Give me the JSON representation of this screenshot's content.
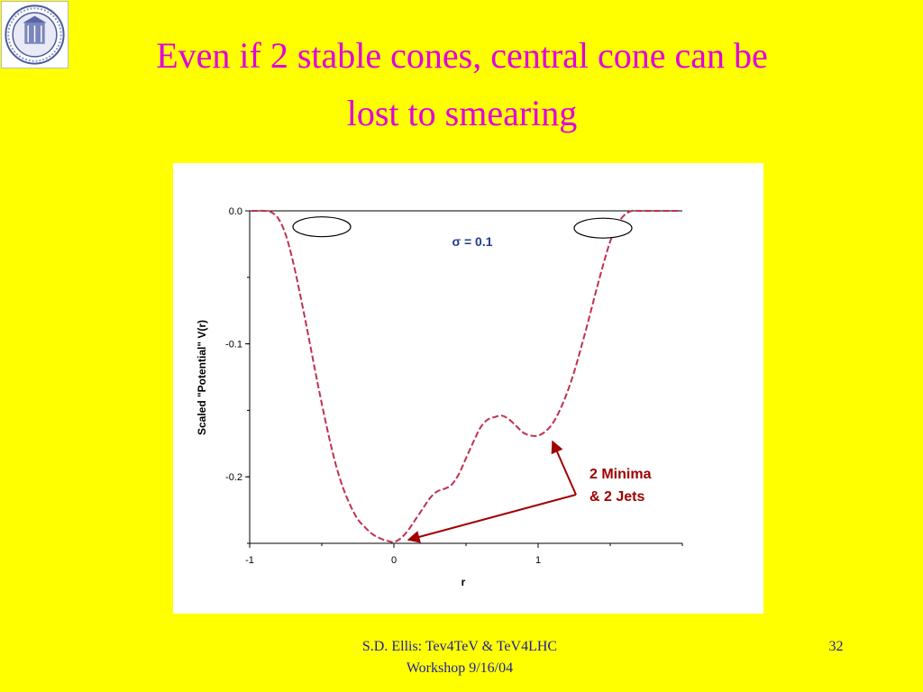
{
  "title": {
    "line1": "Even if 2 stable cones, central cone can be",
    "line2": "lost to smearing"
  },
  "logo": {
    "icon": "university-seal-icon"
  },
  "footer": {
    "line1": "S.D. Ellis: Tev4TeV & TeV4LHC",
    "line2": "Workshop  9/16/04",
    "page": "32"
  },
  "chart_data": {
    "type": "line",
    "xlabel": "r",
    "ylabel": "Scaled \"Potential\" V(r)",
    "xlim": [
      -1,
      2
    ],
    "ylim": [
      -0.25,
      0.0
    ],
    "x_ticks": [
      -1,
      0,
      1
    ],
    "x_tick_labels": [
      "-1",
      "0",
      "1"
    ],
    "y_ticks": [
      0.0,
      -0.1,
      -0.2
    ],
    "y_tick_labels": [
      "0.0",
      "-0.1",
      "-0.2"
    ],
    "grid": false,
    "line_color": "#c03050",
    "line_style": "dashed",
    "series": [
      {
        "x": [
          -0.95,
          -0.9,
          -0.85,
          -0.8,
          -0.75,
          -0.7,
          -0.65,
          -0.6,
          -0.55,
          -0.5,
          -0.45,
          -0.4,
          -0.35,
          -0.3,
          -0.25,
          -0.2,
          -0.15,
          -0.1,
          -0.05,
          0.0,
          0.05,
          0.1,
          0.15,
          0.2,
          0.25,
          0.3,
          0.35,
          0.4,
          0.45,
          0.5,
          0.55,
          0.6,
          0.65,
          0.7,
          0.75,
          0.8,
          0.85,
          0.9,
          0.95,
          1.0,
          1.05,
          1.1,
          1.15,
          1.2,
          1.25,
          1.3,
          1.35,
          1.4,
          1.45,
          1.5,
          1.55,
          1.6,
          1.65,
          1.7,
          1.75,
          1.8,
          1.85,
          1.9,
          1.95
        ],
        "y": [
          0.0,
          0.0,
          -0.001,
          -0.006,
          -0.018,
          -0.038,
          -0.063,
          -0.09,
          -0.118,
          -0.145,
          -0.17,
          -0.192,
          -0.209,
          -0.222,
          -0.232,
          -0.238,
          -0.243,
          -0.246,
          -0.248,
          -0.249,
          -0.246,
          -0.24,
          -0.232,
          -0.224,
          -0.216,
          -0.211,
          -0.209,
          -0.206,
          -0.198,
          -0.186,
          -0.174,
          -0.163,
          -0.157,
          -0.155,
          -0.154,
          -0.157,
          -0.162,
          -0.167,
          -0.169,
          -0.169,
          -0.166,
          -0.16,
          -0.15,
          -0.137,
          -0.121,
          -0.102,
          -0.082,
          -0.061,
          -0.041,
          -0.023,
          -0.01,
          -0.003,
          0.0,
          0.0,
          0.0,
          0.0,
          0.0,
          0.0,
          0.0
        ]
      }
    ],
    "annotations": {
      "sigma": "σ = 0.1",
      "minima_line1": "2 Minima",
      "minima_line2": "& 2 Jets",
      "arrow_color": "#a00000",
      "label_color": "#a00000",
      "sigma_color": "#1e3c96",
      "arrow_targets": [
        {
          "x": 0.1,
          "y": -0.244
        },
        {
          "x": 1.1,
          "y": -0.17
        }
      ],
      "cone_ellipses": [
        {
          "x": -0.5,
          "y": -0.012
        },
        {
          "x": 1.45,
          "y": -0.013
        }
      ]
    }
  }
}
